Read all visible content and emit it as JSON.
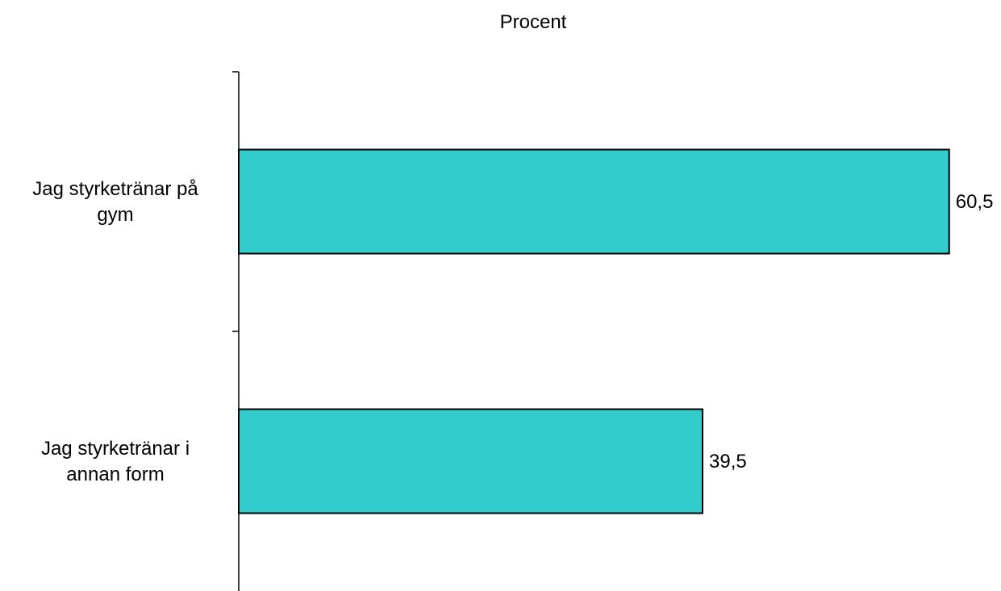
{
  "chart_data": {
    "type": "bar",
    "orientation": "horizontal",
    "title": "Procent",
    "categories": [
      [
        "Jag styrketränar på",
        "gym"
      ],
      [
        "Jag styrketränar i",
        "annan form"
      ]
    ],
    "values": [
      60.5,
      39.5
    ],
    "value_labels": [
      "60,5",
      "39,5"
    ],
    "xlim": [
      0,
      61
    ],
    "grid": false,
    "legend": "none",
    "colors": {
      "bar": "#33CCCC",
      "bar_edge": "#000000",
      "axis": "#000000"
    }
  }
}
